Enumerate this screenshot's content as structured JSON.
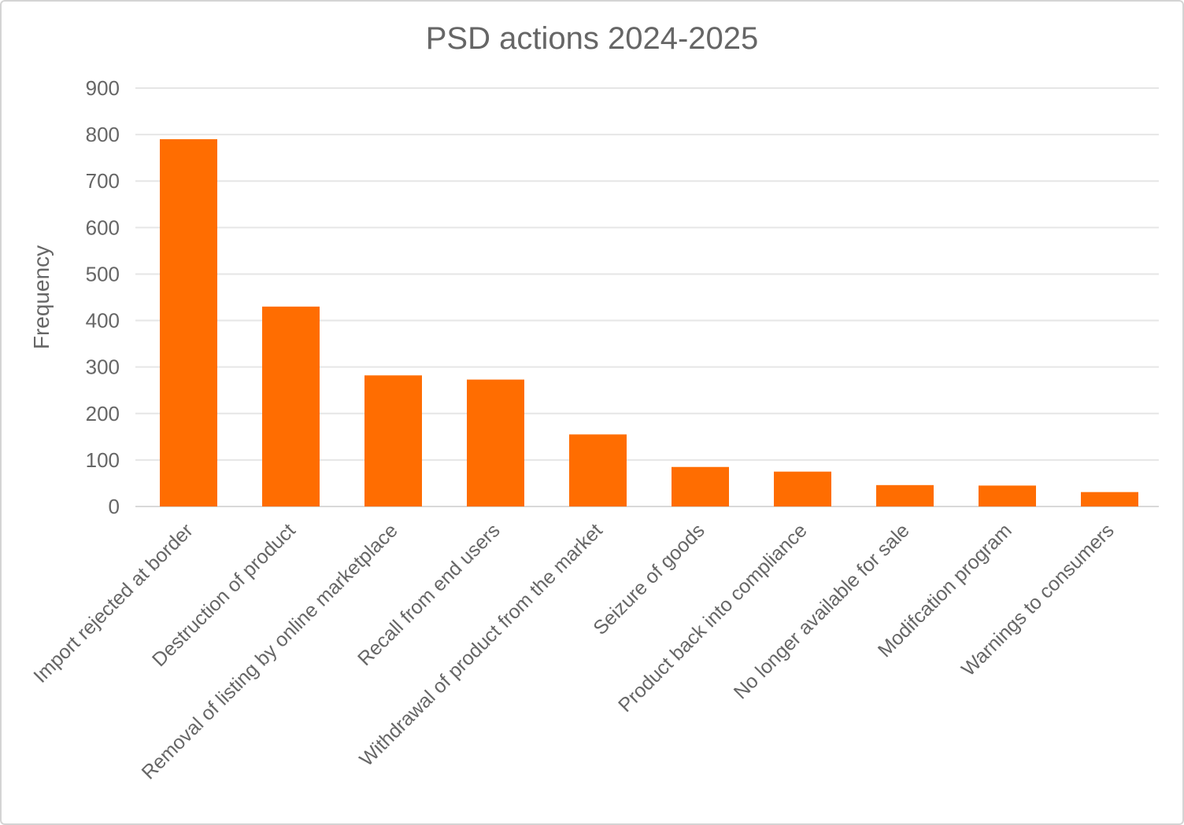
{
  "chart_data": {
    "type": "bar",
    "title": "PSD actions 2024-2025",
    "ylabel": "Frequency",
    "xlabel": "",
    "categories": [
      "Import rejected at border",
      "Destruction of product",
      "Removal of listing by online marketplace",
      "Recall from end users",
      "Withdrawal of product from the market",
      "Seizure of goods",
      "Product back into compliance",
      "No longer available for sale",
      "Modifcation program",
      "Warnings to consumers"
    ],
    "values": [
      790,
      430,
      282,
      273,
      155,
      85,
      75,
      46,
      45,
      31
    ],
    "ylim": [
      0,
      900
    ],
    "ytick_interval": 100,
    "yticks": [
      0,
      100,
      200,
      300,
      400,
      500,
      600,
      700,
      800,
      900
    ],
    "grid": true,
    "legend_position": "none",
    "colors": {
      "bar": "#ff6d01",
      "title_text": "#666666",
      "axis_text": "#666666",
      "gridline": "#e6e6e6",
      "baseline": "#d9d9d9",
      "background": "#ffffff",
      "card_border": "#d4d4d4"
    }
  }
}
